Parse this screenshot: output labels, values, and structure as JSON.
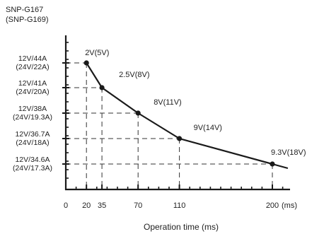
{
  "chart_data": {
    "type": "line",
    "title": [
      "SNP-G167",
      "(SNP-G169)"
    ],
    "xlabel": "Operation time (ms)",
    "ylabel": "",
    "x_unit": "(ms)",
    "xlim": [
      0,
      220
    ],
    "x_ticks": [
      0,
      20,
      35,
      70,
      110,
      200
    ],
    "y_ticks": [
      {
        "value": 44,
        "label": [
          "12V/44A",
          "(24V/22A)"
        ]
      },
      {
        "value": 41,
        "label": [
          "12V/41A",
          "(24V/20A)"
        ]
      },
      {
        "value": 38,
        "label": [
          "12V/38A",
          "(24V/19.3A)"
        ]
      },
      {
        "value": 36.7,
        "label": [
          "12V/36.7A",
          "(24V/18A)"
        ]
      },
      {
        "value": 34.6,
        "label": [
          "12V/34.6A",
          "(24V/17.3A)"
        ]
      }
    ],
    "points": [
      {
        "x": 20,
        "y": 44,
        "label": "2V(5V)"
      },
      {
        "x": 35,
        "y": 41,
        "label": "2.5V(8V)"
      },
      {
        "x": 70,
        "y": 38,
        "label": "8V(11V)"
      },
      {
        "x": 110,
        "y": 36.7,
        "label": "9V(14V)"
      },
      {
        "x": 200,
        "y": 34.6,
        "label": "9.3V(18V)"
      }
    ],
    "line_end": {
      "x": 215
    },
    "grid": "dashed guide lines from each point to both axes",
    "legend": "none",
    "colors": {
      "line": "#1a1a1a",
      "axis": "#1a1a1a",
      "text": "#222222",
      "guide": "#333333"
    }
  }
}
